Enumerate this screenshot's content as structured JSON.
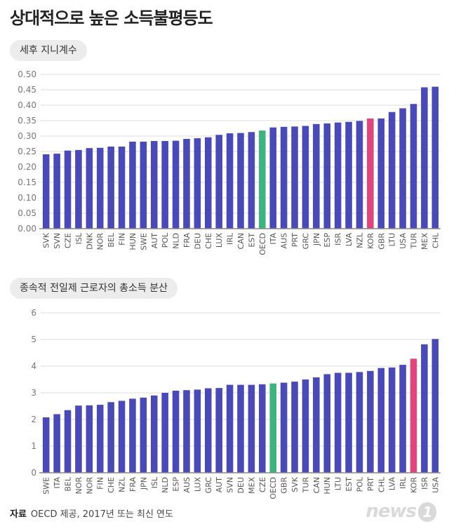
{
  "page": {
    "title": "상대적으로 높은 소득불평등도",
    "footer_label": "자료",
    "footer_text": "OECD 제공, 2017년 또는 최신 연도",
    "logo": "news",
    "logo_mark": "1"
  },
  "colors": {
    "bar": "#4a49b8",
    "oecd": "#3fb37f",
    "kor": "#e0457b",
    "grid": "#dddddd",
    "axis": "#888888"
  },
  "chart_data": [
    {
      "type": "bar",
      "title": "세후 지니계수",
      "categories": [
        "SVK",
        "SVN",
        "CZE",
        "ISL",
        "DNK",
        "NOR",
        "BEL",
        "FIN",
        "HUN",
        "SWE",
        "AUT",
        "POL",
        "NLD",
        "FRA",
        "DEU",
        "CHE",
        "LUX",
        "IRL",
        "CAN",
        "EST",
        "OECD",
        "ITA",
        "AUS",
        "PRT",
        "GRC",
        "JPN",
        "ESP",
        "ISR",
        "LVA",
        "NZL",
        "KOR",
        "GBR",
        "LTU",
        "USA",
        "TUR",
        "MEX",
        "CHL"
      ],
      "values": [
        0.241,
        0.243,
        0.253,
        0.255,
        0.261,
        0.262,
        0.266,
        0.266,
        0.282,
        0.282,
        0.284,
        0.284,
        0.285,
        0.291,
        0.293,
        0.296,
        0.304,
        0.309,
        0.31,
        0.313,
        0.318,
        0.328,
        0.33,
        0.331,
        0.333,
        0.339,
        0.341,
        0.344,
        0.346,
        0.349,
        0.357,
        0.357,
        0.378,
        0.39,
        0.404,
        0.458,
        0.46
      ],
      "ylim": [
        0,
        0.5
      ],
      "yticks": [
        "0.00",
        "0.05",
        "0.10",
        "0.15",
        "0.20",
        "0.25",
        "0.30",
        "0.35",
        "0.40",
        "0.45",
        "0.50"
      ],
      "highlight": {
        "OECD": "oecd",
        "KOR": "kor"
      }
    },
    {
      "type": "bar",
      "title": "종속적 전일제 근로자의 총소득 분산",
      "categories": [
        "SWE",
        "ITA",
        "BEL",
        "NOR",
        "NOR",
        "FIN",
        "CHE",
        "NZL",
        "FRA",
        "JPN",
        "ISL",
        "NLD",
        "ESP",
        "AUS",
        "LUX",
        "GRC",
        "AUT",
        "SVN",
        "DEU",
        "MEX",
        "CZE",
        "OECD",
        "GBR",
        "SVK",
        "TUR",
        "CAN",
        "HUN",
        "LTU",
        "EST",
        "POL",
        "PRT",
        "CHL",
        "LVA",
        "IRL",
        "KOR",
        "ISR",
        "USA"
      ],
      "values": [
        2.08,
        2.2,
        2.35,
        2.52,
        2.53,
        2.55,
        2.65,
        2.7,
        2.78,
        2.82,
        2.9,
        3.0,
        3.08,
        3.1,
        3.12,
        3.17,
        3.18,
        3.3,
        3.3,
        3.3,
        3.32,
        3.35,
        3.38,
        3.42,
        3.5,
        3.58,
        3.7,
        3.75,
        3.75,
        3.78,
        3.82,
        3.93,
        3.95,
        4.05,
        4.28,
        4.82,
        5.02
      ],
      "ylim": [
        0,
        6
      ],
      "yticks": [
        "0",
        "1",
        "2",
        "3",
        "4",
        "5",
        "6"
      ],
      "highlight": {
        "OECD": "oecd",
        "KOR": "kor"
      }
    }
  ]
}
